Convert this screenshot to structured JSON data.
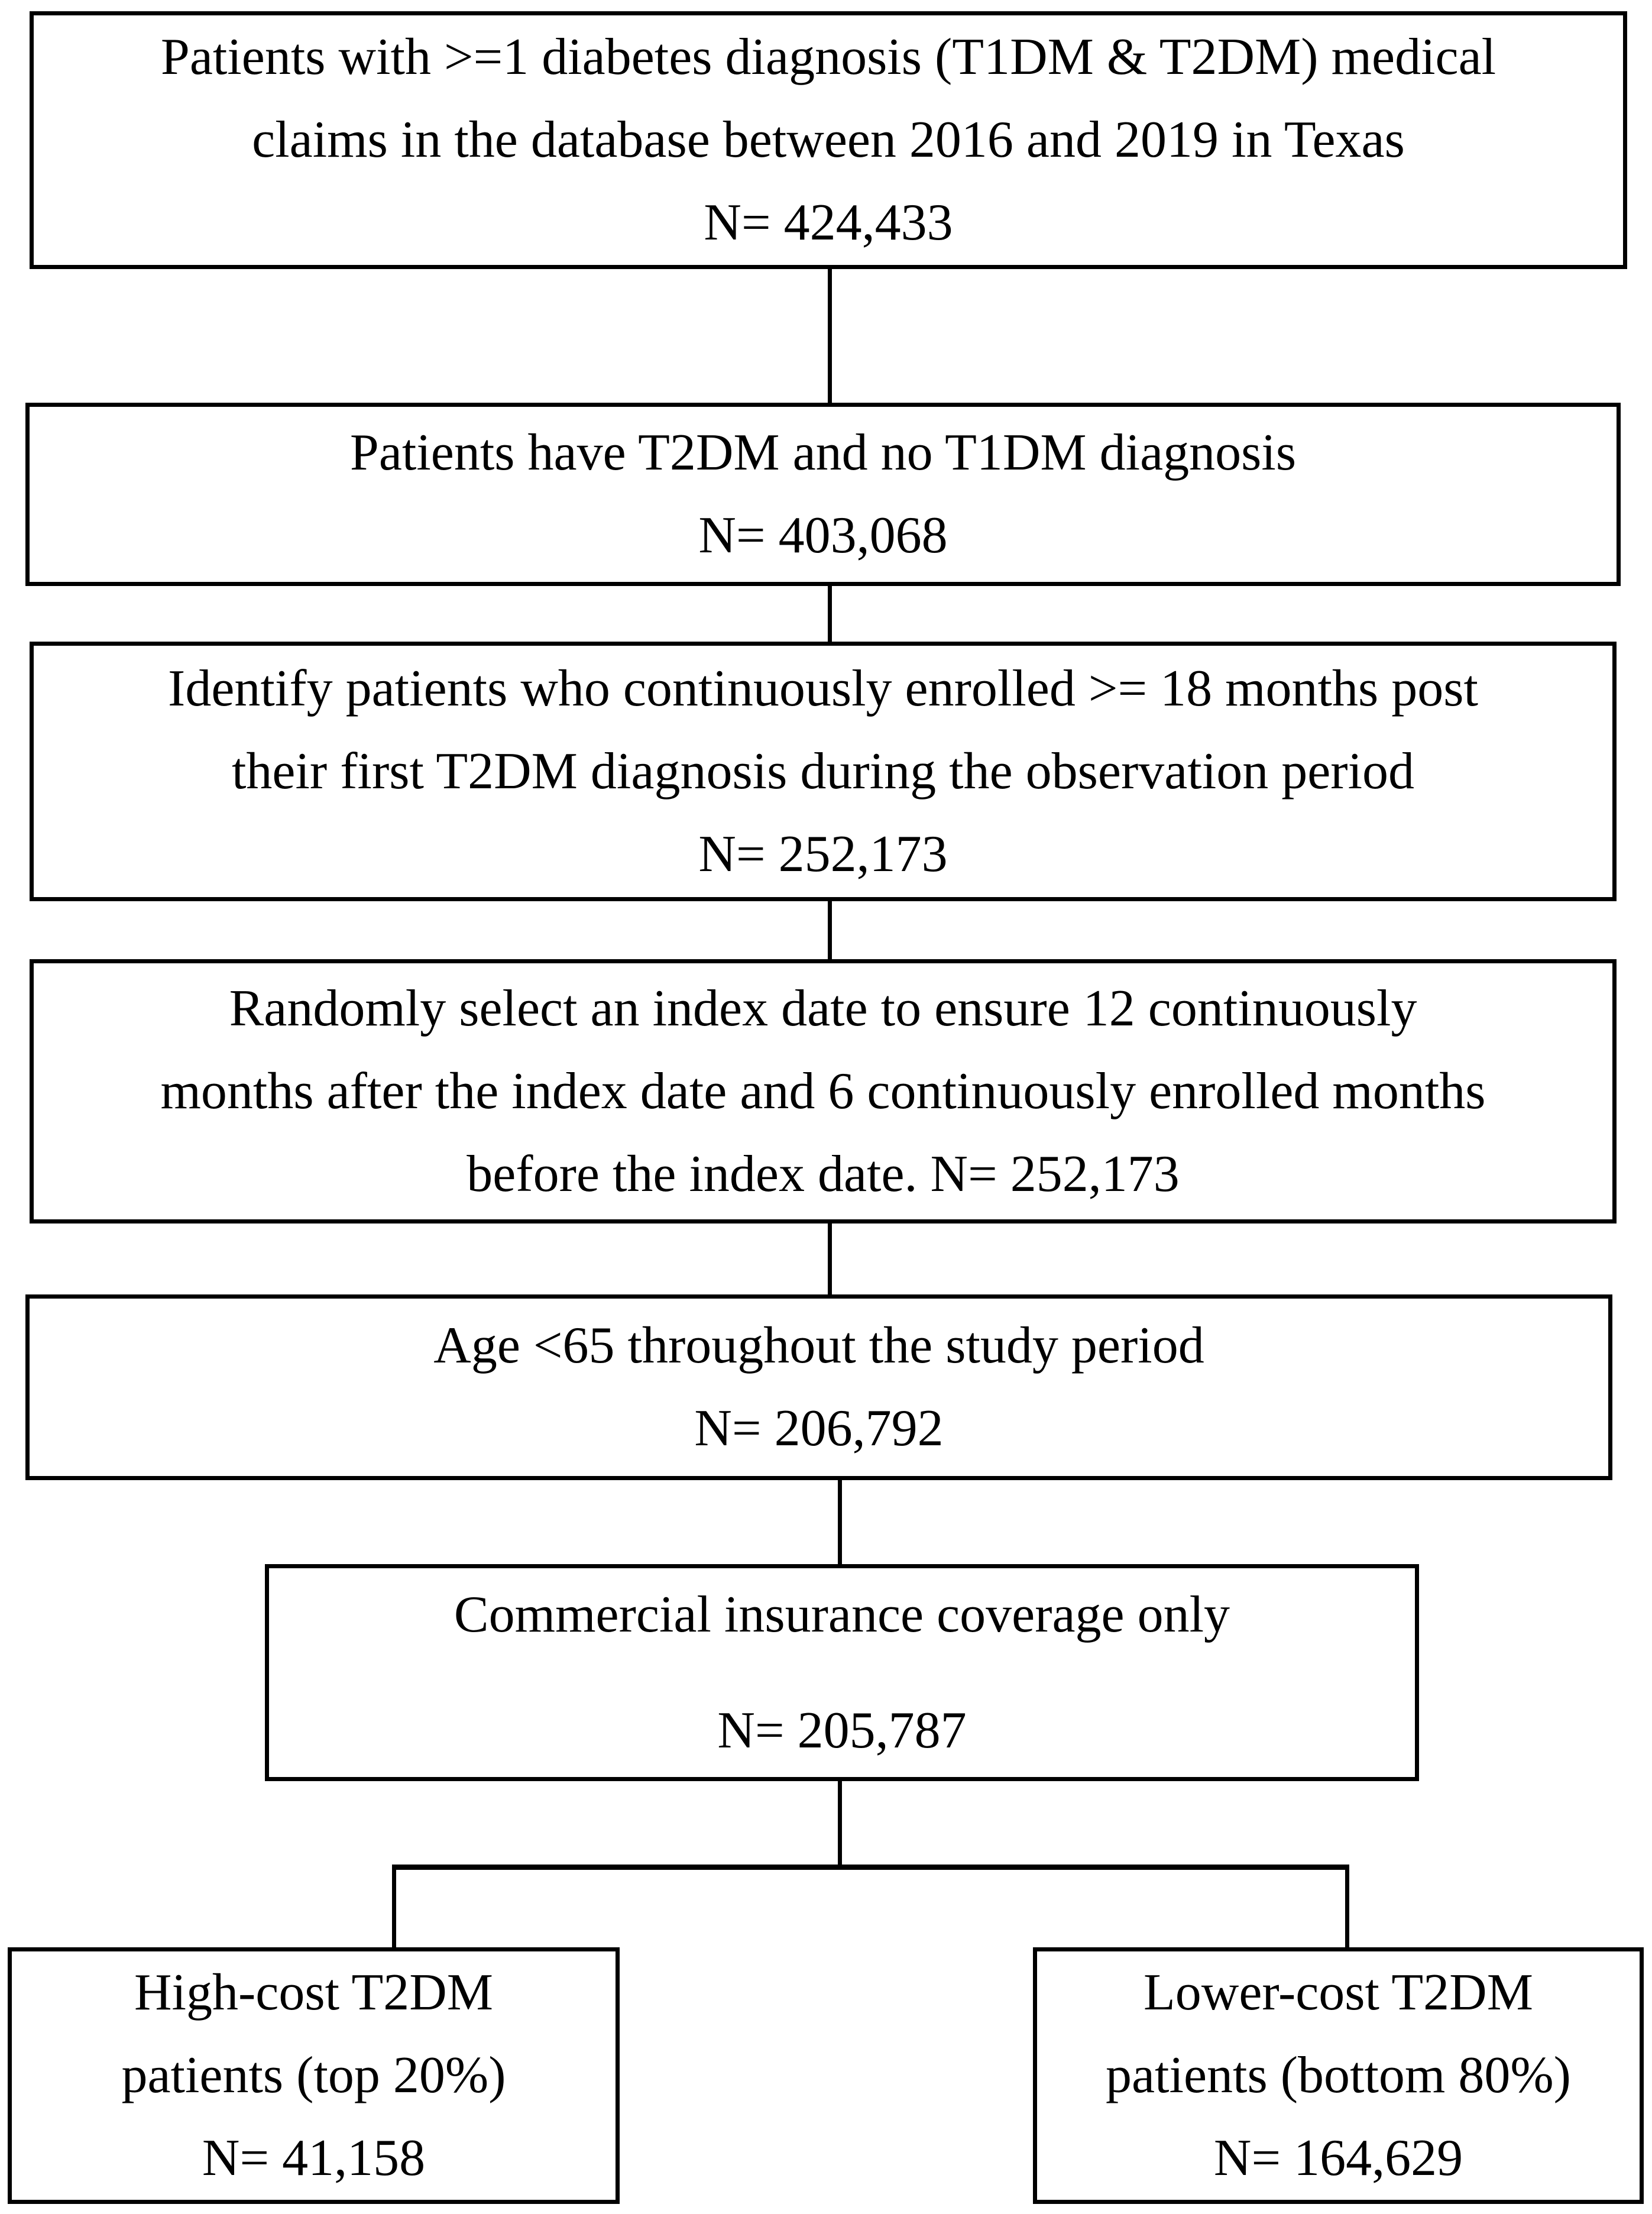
{
  "figure": {
    "type": "flowchart",
    "description": "Patient selection flowchart for T2DM study",
    "colors": {
      "line": "#000000",
      "background": "#ffffff",
      "text": "#000000"
    },
    "boxes": [
      {
        "name": "diabetes-claims-population",
        "lines": [
          "Patients with >=1 diabetes diagnosis (T1DM & T2DM) medical",
          "claims in the database between 2016 and 2019 in Texas",
          "N= 424,433"
        ]
      },
      {
        "name": "t2dm-no-t1dm",
        "lines": [
          "Patients have T2DM and no T1DM diagnosis",
          "N= 403,068"
        ]
      },
      {
        "name": "continuous-enrollment-18mo",
        "lines": [
          "Identify patients who continuously enrolled >= 18 months post",
          "their first T2DM diagnosis during the observation period",
          "N= 252,173"
        ]
      },
      {
        "name": "random-index-date",
        "lines": [
          "Randomly select an index date to ensure 12 continuously",
          "months after the index date and 6 continuously enrolled months",
          "before the index date. N= 252,173"
        ]
      },
      {
        "name": "age-under-65",
        "lines": [
          "Age <65 throughout the study period",
          "N= 206,792"
        ]
      },
      {
        "name": "commercial-insurance-only",
        "lines": [
          "Commercial insurance coverage only",
          "N= 205,787"
        ]
      },
      {
        "name": "high-cost-t2dm",
        "lines": [
          "High-cost T2DM",
          "patients (top 20%)",
          "N= 41,158"
        ]
      },
      {
        "name": "lower-cost-t2dm",
        "lines": [
          "Lower-cost T2DM",
          "patients (bottom 80%)",
          "N= 164,629"
        ]
      }
    ]
  }
}
